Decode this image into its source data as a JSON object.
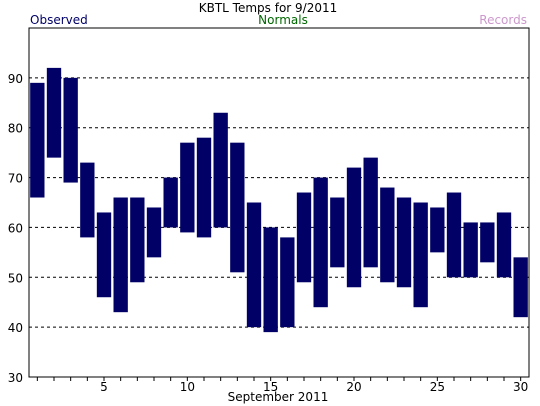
{
  "chart_data": {
    "type": "bar",
    "subtype": "floating-range",
    "title": "KBTL Temps for 9/2011",
    "xlabel": "September 2011",
    "ylabel": "",
    "legend": [
      {
        "name": "Observed",
        "color": "#000066",
        "placement": "top-left"
      },
      {
        "name": "Normals",
        "color": "#006600",
        "placement": "top-center"
      },
      {
        "name": "Records",
        "color": "#cc99cc",
        "placement": "top-right"
      }
    ],
    "x": [
      1,
      2,
      3,
      4,
      5,
      6,
      7,
      8,
      9,
      10,
      11,
      12,
      13,
      14,
      15,
      16,
      17,
      18,
      19,
      20,
      21,
      22,
      23,
      24,
      25,
      26,
      27,
      28,
      29,
      30
    ],
    "xlim": [
      0.5,
      30.5
    ],
    "x_tick_labels": [
      5,
      10,
      15,
      20,
      25,
      30
    ],
    "ylim": [
      30,
      100
    ],
    "y_tick_labels": [
      30,
      40,
      50,
      60,
      70,
      80,
      90
    ],
    "grid": {
      "horizontal": true,
      "style": "dashed",
      "values": [
        40,
        50,
        60,
        70,
        80,
        90
      ]
    },
    "series": [
      {
        "name": "Observed",
        "color": "#000066",
        "highs": [
          89,
          92,
          90,
          73,
          63,
          66,
          66,
          64,
          70,
          77,
          78,
          83,
          77,
          65,
          60,
          58,
          67,
          70,
          66,
          72,
          74,
          68,
          66,
          65,
          64,
          67,
          61,
          61,
          63,
          54
        ],
        "lows": [
          66,
          74,
          69,
          58,
          46,
          43,
          49,
          54,
          60,
          59,
          58,
          60,
          51,
          40,
          39,
          40,
          49,
          44,
          52,
          48,
          52,
          49,
          48,
          44,
          55,
          50,
          50,
          53,
          50,
          42
        ]
      }
    ]
  }
}
